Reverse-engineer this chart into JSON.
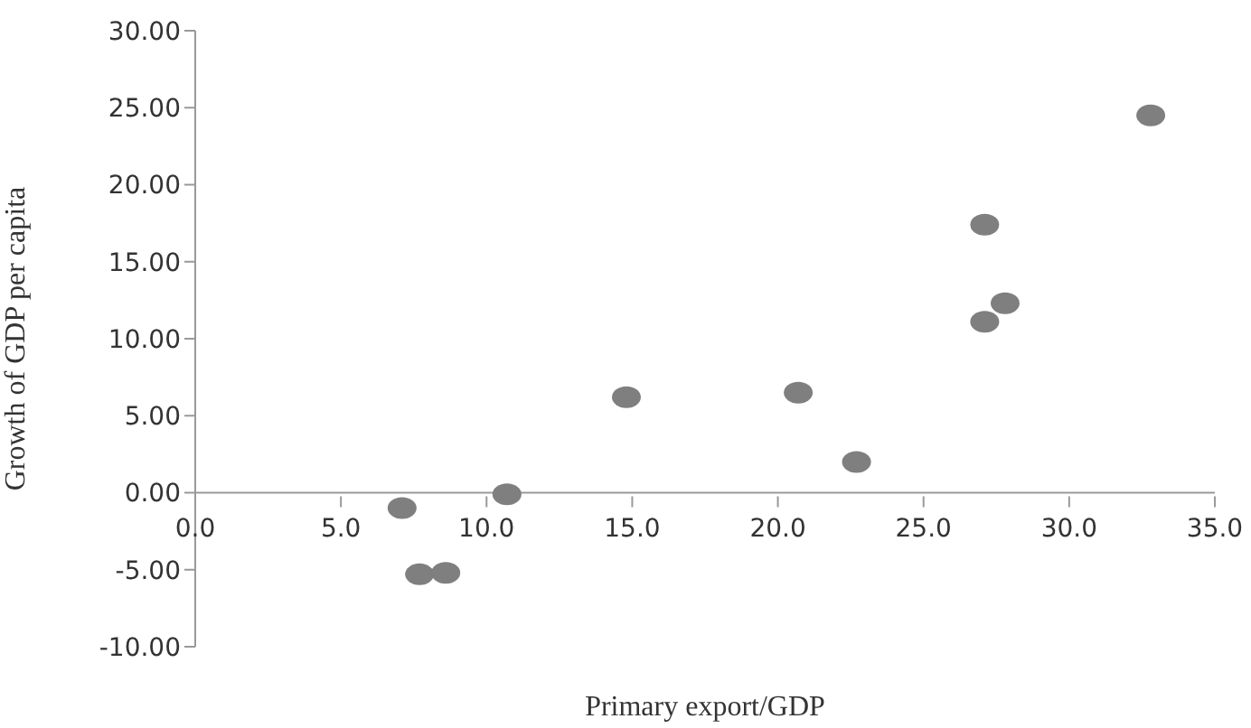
{
  "chart_data": {
    "type": "scatter",
    "xlabel": "Primary export/GDP",
    "ylabel": "Growth of GDP per capita",
    "x": [
      7.1,
      7.7,
      8.6,
      10.7,
      14.8,
      20.7,
      22.7,
      27.1,
      27.1,
      27.8,
      32.8
    ],
    "values": [
      -1.0,
      -5.3,
      -5.2,
      -0.1,
      6.2,
      6.5,
      2.0,
      17.4,
      11.1,
      12.3,
      24.5
    ],
    "color": "#7f7f7f",
    "marker": "circle",
    "grid": false,
    "legend": false,
    "xlim": [
      0,
      35
    ],
    "xticks": [
      {
        "value": 0,
        "label": "0.0"
      },
      {
        "value": 5,
        "label": "5.0"
      },
      {
        "value": 10,
        "label": "10.0"
      },
      {
        "value": 15,
        "label": "15.0"
      },
      {
        "value": 20,
        "label": "20.0"
      },
      {
        "value": 25,
        "label": "25.0"
      },
      {
        "value": 30,
        "label": "30.0"
      },
      {
        "value": 35,
        "label": "35.0"
      }
    ],
    "ylim": [
      -10,
      30
    ],
    "yticks": [
      {
        "value": -10,
        "label": "-10.00"
      },
      {
        "value": -5,
        "label": "-5.00"
      },
      {
        "value": 0,
        "label": "0.00"
      },
      {
        "value": 5,
        "label": "5.00"
      },
      {
        "value": 10,
        "label": "10.00"
      },
      {
        "value": 15,
        "label": "15.00"
      },
      {
        "value": 20,
        "label": "20.00"
      },
      {
        "value": 25,
        "label": "25.00"
      },
      {
        "value": 30,
        "label": "30.00"
      }
    ]
  }
}
